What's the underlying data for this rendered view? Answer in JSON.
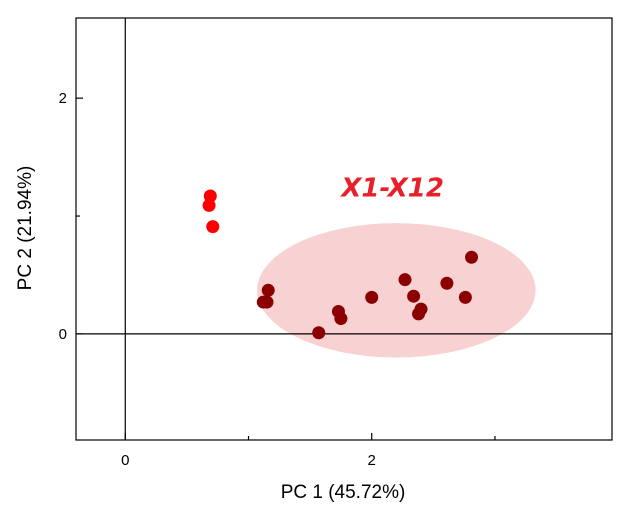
{
  "chart_data": {
    "type": "scatter",
    "title": "",
    "xlabel": "PC 1 (45.72%)",
    "ylabel": "PC 2 (21.94%)",
    "xlim": [
      -0.4,
      3.95
    ],
    "ylim": [
      -0.9,
      2.68
    ],
    "x_ticks_major": [
      0,
      2
    ],
    "x_ticks_minor": [
      1,
      3
    ],
    "y_ticks_major": [
      0,
      2
    ],
    "y_ticks_minor": [
      1
    ],
    "x_tick_labels": [
      "0",
      "2"
    ],
    "y_tick_labels": [
      "0",
      "2"
    ],
    "grid": false,
    "zero_lines": true,
    "series": [
      {
        "color": "#ff0000",
        "points": [
          {
            "x": 0.69,
            "y": 1.17
          },
          {
            "x": 0.68,
            "y": 1.09
          },
          {
            "x": 0.71,
            "y": 0.91
          }
        ]
      },
      {
        "color": "#8b0000",
        "points": [
          {
            "x": 1.16,
            "y": 0.37
          },
          {
            "x": 1.12,
            "y": 0.27
          },
          {
            "x": 1.15,
            "y": 0.27
          },
          {
            "x": 1.57,
            "y": 0.01
          },
          {
            "x": 1.73,
            "y": 0.19
          },
          {
            "x": 1.75,
            "y": 0.13
          },
          {
            "x": 2.0,
            "y": 0.31
          },
          {
            "x": 2.27,
            "y": 0.46
          },
          {
            "x": 2.34,
            "y": 0.32
          },
          {
            "x": 2.38,
            "y": 0.17
          },
          {
            "x": 2.4,
            "y": 0.21
          },
          {
            "x": 2.61,
            "y": 0.43
          },
          {
            "x": 2.76,
            "y": 0.31
          },
          {
            "x": 2.81,
            "y": 0.65
          }
        ]
      }
    ],
    "ellipse": {
      "cx": 2.2,
      "cy": 0.37,
      "rx": 1.13,
      "ry": 0.57,
      "color": "#f7caca"
    },
    "annotations": [
      {
        "text": "X1-X12",
        "x": 2.17,
        "y": 1.23,
        "color": "#e8202a"
      }
    ]
  }
}
